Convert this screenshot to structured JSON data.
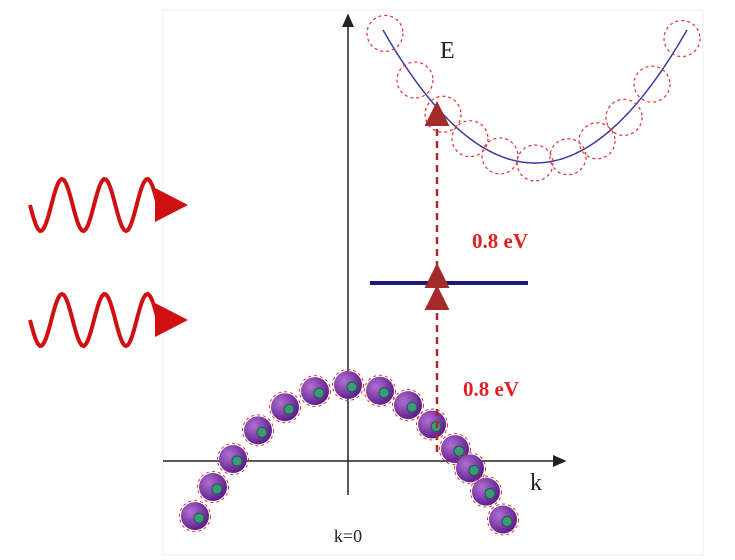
{
  "axes": {
    "energy_label": "E",
    "k_label": "k",
    "origin_label": "k=0"
  },
  "transitions": [
    {
      "label": "0.8 eV"
    },
    {
      "label": "0.8 eV"
    }
  ]
}
